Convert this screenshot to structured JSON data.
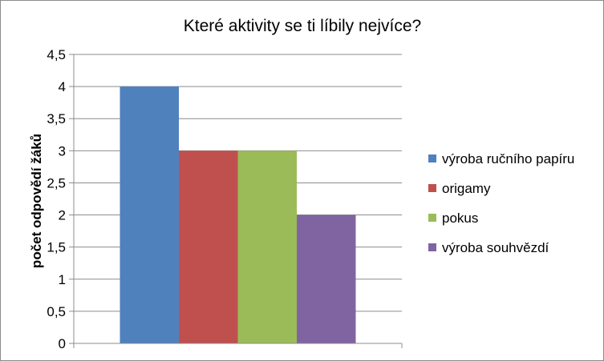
{
  "chart_data": {
    "type": "bar",
    "title": "Které aktivity se ti líbily nejvíce?",
    "ylabel": "počet odpovědí žáků",
    "xlabel": "",
    "ylim": [
      0,
      4.5
    ],
    "ytick_step": 0.5,
    "y_ticks": [
      "0",
      "0,5",
      "1",
      "1,5",
      "2",
      "2,5",
      "3",
      "3,5",
      "4",
      "4,5"
    ],
    "categories": [
      ""
    ],
    "series": [
      {
        "name": "výroba ručního papíru",
        "values": [
          4
        ],
        "color": "#4F81BD"
      },
      {
        "name": "origamy",
        "values": [
          3
        ],
        "color": "#C0504D"
      },
      {
        "name": "pokus",
        "values": [
          3
        ],
        "color": "#9BBB59"
      },
      {
        "name": "výroba souhvězdí",
        "values": [
          2
        ],
        "color": "#8064A2"
      }
    ],
    "grid": true,
    "legend_position": "right"
  }
}
